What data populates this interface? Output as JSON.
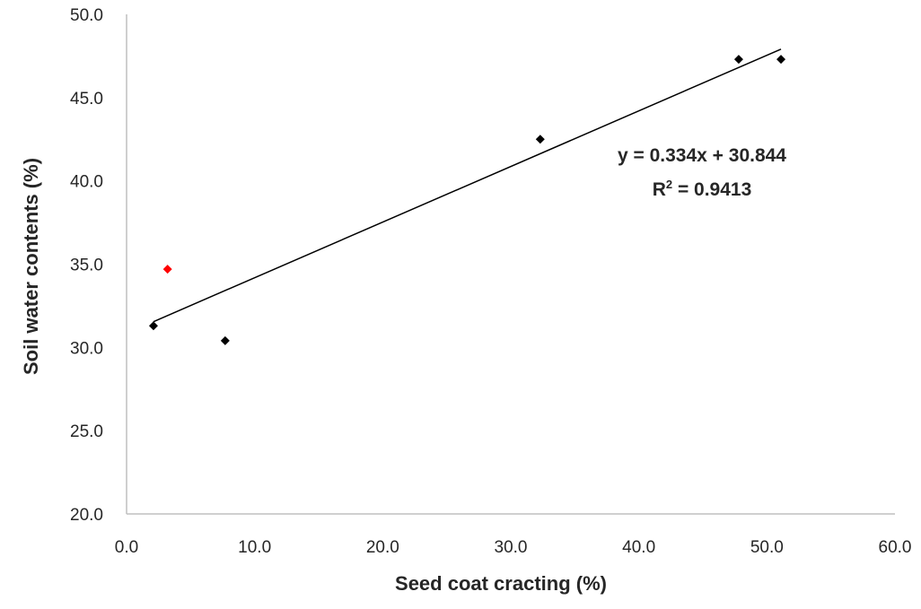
{
  "chart_data": {
    "type": "scatter",
    "xlabel": "Seed coat cracting (%)",
    "ylabel": "Soil water contents (%)",
    "xlim": [
      0,
      60
    ],
    "ylim": [
      20,
      50
    ],
    "x_ticks": [
      "0.0",
      "10.0",
      "20.0",
      "30.0",
      "40.0",
      "50.0",
      "60.0"
    ],
    "y_ticks": [
      "20.0",
      "25.0",
      "30.0",
      "35.0",
      "40.0",
      "45.0",
      "50.0"
    ],
    "grid": false,
    "series": [
      {
        "marker": "diamond",
        "color": "#000000",
        "points": [
          {
            "x": 2.1,
            "y": 31.3
          },
          {
            "x": 7.7,
            "y": 30.4
          },
          {
            "x": 32.3,
            "y": 42.5
          },
          {
            "x": 47.8,
            "y": 47.3
          },
          {
            "x": 51.1,
            "y": 47.3
          }
        ]
      },
      {
        "marker": "diamond",
        "color": "#ff0000",
        "points": [
          {
            "x": 3.2,
            "y": 34.7
          }
        ]
      }
    ],
    "trendline": {
      "slope": 0.334,
      "intercept": 30.844,
      "x_range": [
        2.1,
        51.1
      ],
      "color": "#000000"
    },
    "annotations": {
      "equation": "y = 0.334x + 30.844",
      "r2_prefix": "R",
      "r2_sup": "2",
      "r2_value": " = 0.9413"
    }
  }
}
